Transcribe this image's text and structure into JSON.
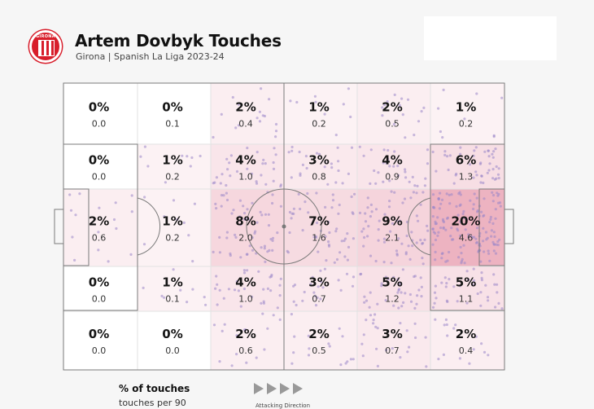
{
  "header": {
    "title": "Artem Dovbyk Touches",
    "subtitle": "Girona | Spanish La Liga 2023-24",
    "badge_text": "GIRONA"
  },
  "legend": {
    "pct_label": "% of touches",
    "per90_label": "touches per 90",
    "direction_label": "Attacking Direction"
  },
  "colors": {
    "background": "#f6f6f6",
    "heat": "#d85a78",
    "dots": "#9a86c8",
    "lines": "#7a7a7a",
    "badge": "#d81e2b"
  },
  "chart_data": {
    "type": "heatmap",
    "title": "Artem Dovbyk Touches",
    "subtitle": "Girona | Spanish La Liga 2023-24",
    "rows": 5,
    "cols": 6,
    "attacking_direction": "left-to-right",
    "pct": [
      [
        "0%",
        "0%",
        "2%",
        "1%",
        "2%",
        "1%"
      ],
      [
        "0%",
        "1%",
        "4%",
        "3%",
        "4%",
        "6%"
      ],
      [
        "2%",
        "1%",
        "8%",
        "7%",
        "9%",
        "20%"
      ],
      [
        "0%",
        "1%",
        "4%",
        "3%",
        "5%",
        "5%"
      ],
      [
        "0%",
        "0%",
        "2%",
        "2%",
        "3%",
        "2%"
      ]
    ],
    "per90": [
      [
        "0.0",
        "0.1",
        "0.4",
        "0.2",
        "0.5",
        "0.2"
      ],
      [
        "0.0",
        "0.2",
        "1.0",
        "0.8",
        "0.9",
        "1.3"
      ],
      [
        "0.6",
        "0.2",
        "2.0",
        "1.6",
        "2.1",
        "4.6"
      ],
      [
        "0.0",
        "0.1",
        "1.0",
        "0.7",
        "1.2",
        "1.1"
      ],
      [
        "0.0",
        "0.0",
        "0.6",
        "0.5",
        "0.7",
        "0.4"
      ]
    ],
    "pct_values": [
      [
        0,
        0,
        2,
        1,
        2,
        1
      ],
      [
        0,
        1,
        4,
        3,
        4,
        6
      ],
      [
        2,
        1,
        8,
        7,
        9,
        20
      ],
      [
        0,
        1,
        4,
        3,
        5,
        5
      ],
      [
        0,
        0,
        2,
        2,
        3,
        2
      ]
    ]
  }
}
